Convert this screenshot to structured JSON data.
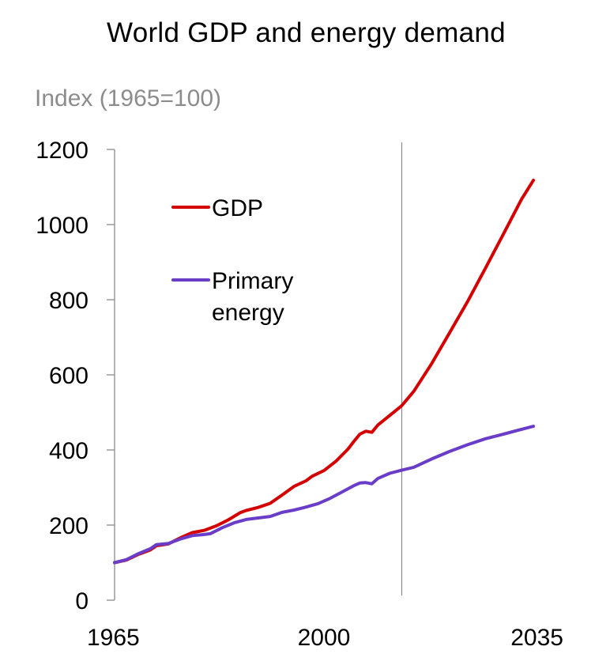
{
  "chart_data": {
    "type": "line",
    "title": "World GDP and energy demand",
    "ylabel": "Index (1965=100)",
    "xlabel": "",
    "xlim": [
      1965,
      2035
    ],
    "ylim": [
      0,
      1200
    ],
    "x_ticks": [
      "1965",
      "2000",
      "2035"
    ],
    "y_ticks": [
      "0",
      "200",
      "400",
      "600",
      "800",
      "1000",
      "1200"
    ],
    "grid": false,
    "vertical_marker_x": 2013,
    "legend": {
      "placement": "top-left"
    },
    "series": [
      {
        "name": "GDP",
        "color": "#d40000",
        "points": [
          [
            1965,
            100
          ],
          [
            1967,
            107
          ],
          [
            1969,
            122
          ],
          [
            1971,
            134
          ],
          [
            1972,
            145
          ],
          [
            1974,
            150
          ],
          [
            1976,
            166
          ],
          [
            1978,
            180
          ],
          [
            1980,
            186
          ],
          [
            1982,
            198
          ],
          [
            1984,
            214
          ],
          [
            1986,
            233
          ],
          [
            1987,
            239
          ],
          [
            1989,
            247
          ],
          [
            1991,
            258
          ],
          [
            1993,
            280
          ],
          [
            1995,
            303
          ],
          [
            1997,
            318
          ],
          [
            1998,
            330
          ],
          [
            2000,
            345
          ],
          [
            2002,
            370
          ],
          [
            2004,
            402
          ],
          [
            2005,
            423
          ],
          [
            2006,
            442
          ],
          [
            2007,
            450
          ],
          [
            2008,
            447
          ],
          [
            2009,
            466
          ],
          [
            2011,
            492
          ],
          [
            2013,
            518
          ],
          [
            2015,
            556
          ],
          [
            2018,
            630
          ],
          [
            2021,
            712
          ],
          [
            2024,
            795
          ],
          [
            2027,
            884
          ],
          [
            2030,
            975
          ],
          [
            2033,
            1067
          ],
          [
            2035,
            1118
          ]
        ]
      },
      {
        "name": "Primary\nenergy",
        "color": "#6a3dc8",
        "points": [
          [
            1965,
            100
          ],
          [
            1967,
            108
          ],
          [
            1969,
            124
          ],
          [
            1971,
            137
          ],
          [
            1972,
            148
          ],
          [
            1974,
            151
          ],
          [
            1976,
            163
          ],
          [
            1978,
            172
          ],
          [
            1980,
            175
          ],
          [
            1981,
            177
          ],
          [
            1983,
            193
          ],
          [
            1985,
            206
          ],
          [
            1987,
            215
          ],
          [
            1989,
            219
          ],
          [
            1991,
            223
          ],
          [
            1993,
            234
          ],
          [
            1995,
            240
          ],
          [
            1997,
            248
          ],
          [
            1999,
            257
          ],
          [
            2001,
            271
          ],
          [
            2003,
            288
          ],
          [
            2005,
            305
          ],
          [
            2006,
            312
          ],
          [
            2007,
            313
          ],
          [
            2008,
            310
          ],
          [
            2009,
            324
          ],
          [
            2011,
            338
          ],
          [
            2013,
            346
          ],
          [
            2015,
            354
          ],
          [
            2018,
            376
          ],
          [
            2021,
            396
          ],
          [
            2024,
            414
          ],
          [
            2027,
            430
          ],
          [
            2030,
            442
          ],
          [
            2033,
            455
          ],
          [
            2035,
            463
          ]
        ]
      }
    ]
  }
}
